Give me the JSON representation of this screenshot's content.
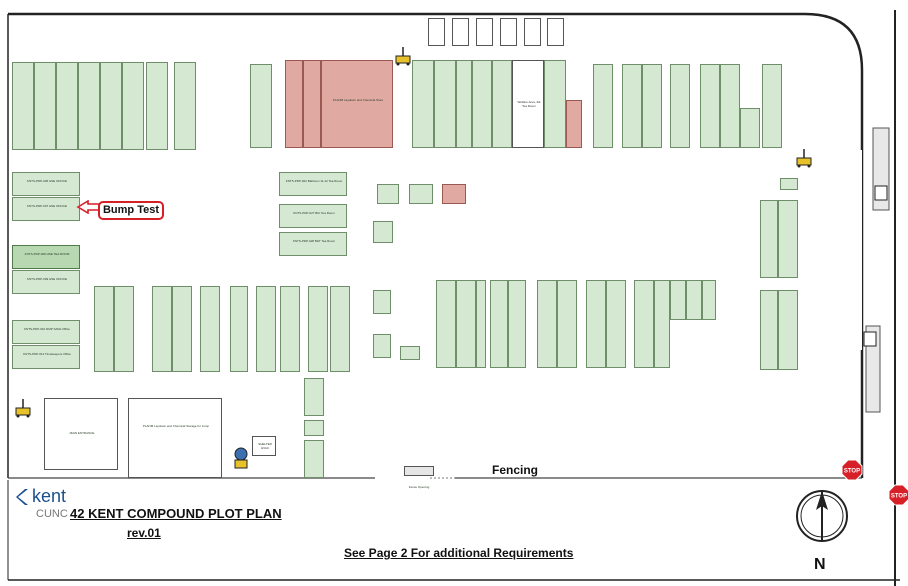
{
  "map": {
    "title": "42 KENT COMPOUND PLOT PLAN",
    "title_prefix": "CUNC",
    "revision": "rev.01",
    "note": "See Page 2 For additional Requirements",
    "logo_text": "kent",
    "fencing_label": "Fencing",
    "north_label": "N",
    "stop_label": "STOP",
    "callout": "Bump Test",
    "main_entrance": "MAIN ENTRANCE",
    "laydown_storage": "PLANM Laydown and Chemical Storage for Jump",
    "laydown_top": "PLANM Laydown and Chemical Store",
    "welfare": "Welfare Area, Zik Tea Room",
    "shelter": "SHELTER HVAC",
    "fence_opening": "Fence Opening",
    "buildings": {
      "hse_office_a": "KNTS-PDP-006 HSE OFFICE",
      "hse_office_b": "KNTS-PDP-007 HSE OFFICE",
      "hse_tea_room": "KNTS-PDP-008 HSE TEA ROOM",
      "hse_office_c": "KNTS-PDP-009 HSE OFFICE",
      "dmp_office": "KNTS-PDP-010 DMP SAFE Office",
      "timekeepers": "KNTS-PDP-012 Timekeepers Office",
      "meeting_room": "KNTS-PDP-022 Ballroom 11-12 Tea Room",
      "tea_room_a": "KNTS-PDP-027 BIC Tea Room",
      "tea_room_b": "KNTS-PDP-028 B&T Tea Room",
      "generic": "KNTS-PDP Office"
    },
    "colors": {
      "building_fill": "#d4e8d2",
      "building_dark": "#b7d8b0",
      "laydown_fill": "#e0a9a1",
      "callout_border": "#d61f26",
      "road_border": "#222222",
      "stop_red": "#d61f26",
      "logo_blue": "#1b4f8e"
    },
    "icons": [
      "crane-icon",
      "stop-sign-icon",
      "north-arrow-icon",
      "kent-logo-icon"
    ]
  }
}
